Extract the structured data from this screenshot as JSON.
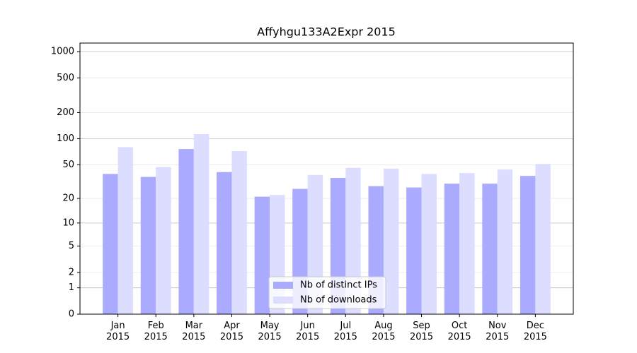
{
  "chart_data": {
    "type": "bar",
    "title": "Affyhgu133A2Expr 2015",
    "categories": [
      "Jan 2015",
      "Feb 2015",
      "Mar 2015",
      "Apr 2015",
      "May 2015",
      "Jun 2015",
      "Jul 2015",
      "Aug 2015",
      "Sep 2015",
      "Oct 2015",
      "Nov 2015",
      "Dec 2015"
    ],
    "series": [
      {
        "name": "Nb of distinct IPs",
        "color": "#aaaaff",
        "values": [
          39,
          36,
          76,
          41,
          21,
          26,
          35,
          28,
          27,
          30,
          30,
          37
        ]
      },
      {
        "name": "Nb of downloads",
        "color": "#ddddff",
        "values": [
          80,
          47,
          113,
          72,
          22,
          38,
          46,
          45,
          39,
          40,
          44,
          51
        ]
      }
    ],
    "yscale": "log1p",
    "ylim": [
      0,
      1250
    ],
    "yticks": [
      0,
      1,
      2,
      5,
      10,
      20,
      50,
      100,
      200,
      500,
      1000
    ],
    "grid": true,
    "legend": "lower center"
  }
}
